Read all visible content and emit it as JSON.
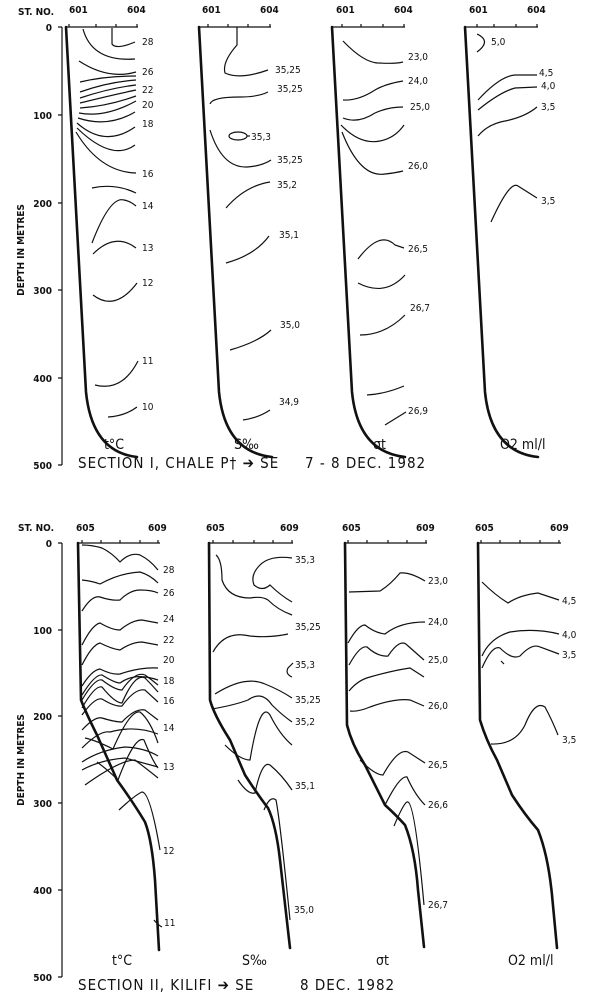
{
  "chart_data": [
    {
      "type": "line",
      "title": "SECTION I, CHALE P† ➔ SE",
      "date": "7 - 8 DEC. 1982",
      "station_label": "ST. NO.",
      "stations": [
        "601",
        "604"
      ],
      "ylabel": "DEPTH IN METRES",
      "yticks": [
        "0",
        "100",
        "200",
        "300",
        "400",
        "500"
      ],
      "ylim": [
        0,
        500
      ],
      "panels": [
        {
          "label": "t°C",
          "contours": [
            "28",
            "26",
            "22",
            "20",
            "18",
            "16",
            "14",
            "13",
            "12",
            "11",
            "10"
          ]
        },
        {
          "label": "S‰",
          "contours": [
            "35,25",
            "35,25",
            "35,3",
            "35,25",
            "35,2",
            "35,1",
            "35,0",
            "34,9"
          ]
        },
        {
          "label": "σt",
          "contours": [
            "23,0",
            "24,0",
            "25,0",
            "26,0",
            "26,5",
            "26,7",
            "26,9"
          ]
        },
        {
          "label": "O2 ml/l",
          "contours": [
            "5,0",
            "4,5",
            "4,0",
            "3,5",
            "3,5"
          ]
        }
      ]
    },
    {
      "type": "line",
      "title": "SECTION II, KILIFI ➔ SE",
      "date": "8 DEC. 1982",
      "station_label": "ST. NO.",
      "stations": [
        "605",
        "609"
      ],
      "ylabel": "DEPTH IN METRES",
      "yticks": [
        "0",
        "100",
        "200",
        "300",
        "400",
        "500"
      ],
      "ylim": [
        0,
        500
      ],
      "panels": [
        {
          "label": "t°C",
          "contours": [
            "28",
            "26",
            "24",
            "22",
            "20",
            "18",
            "16",
            "14",
            "13",
            "12",
            "11"
          ]
        },
        {
          "label": "S‰",
          "contours": [
            "35,3",
            "35,25",
            "35,3",
            "35,25",
            "35,2",
            "35,1",
            "35,0"
          ]
        },
        {
          "label": "σt",
          "contours": [
            "23,0",
            "24,0",
            "25,0",
            "26,0",
            "26,5",
            "26,6",
            "26,7"
          ]
        },
        {
          "label": "O2 ml/l",
          "contours": [
            "4,5",
            "4,0",
            "3,5",
            "3,5"
          ]
        }
      ]
    }
  ]
}
